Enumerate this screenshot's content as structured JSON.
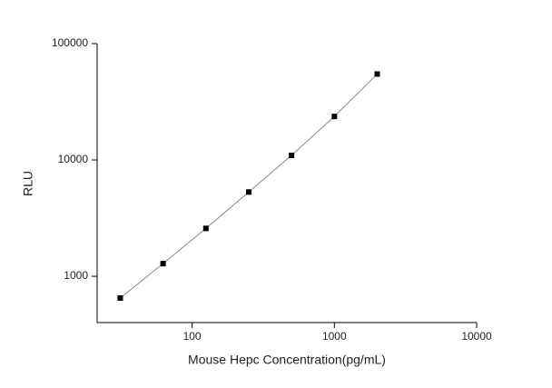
{
  "chart_data": {
    "type": "scatter",
    "x_label": "Mouse Hepc Concentration(pg/mL)",
    "y_label": "RLU",
    "x_scale": "log",
    "y_scale": "log",
    "xlim": [
      21.5,
      10000
    ],
    "ylim": [
      400,
      100000
    ],
    "xticks": [
      100,
      1000,
      10000
    ],
    "yticks": [
      1000,
      10000,
      100000
    ],
    "connect": true,
    "color": "#000000",
    "line_color": "#888888",
    "x": [
      31.25,
      62.5,
      125,
      250,
      500,
      1000,
      2000
    ],
    "values": [
      650,
      1285,
      2580,
      5300,
      10940,
      23650,
      54800
    ]
  }
}
